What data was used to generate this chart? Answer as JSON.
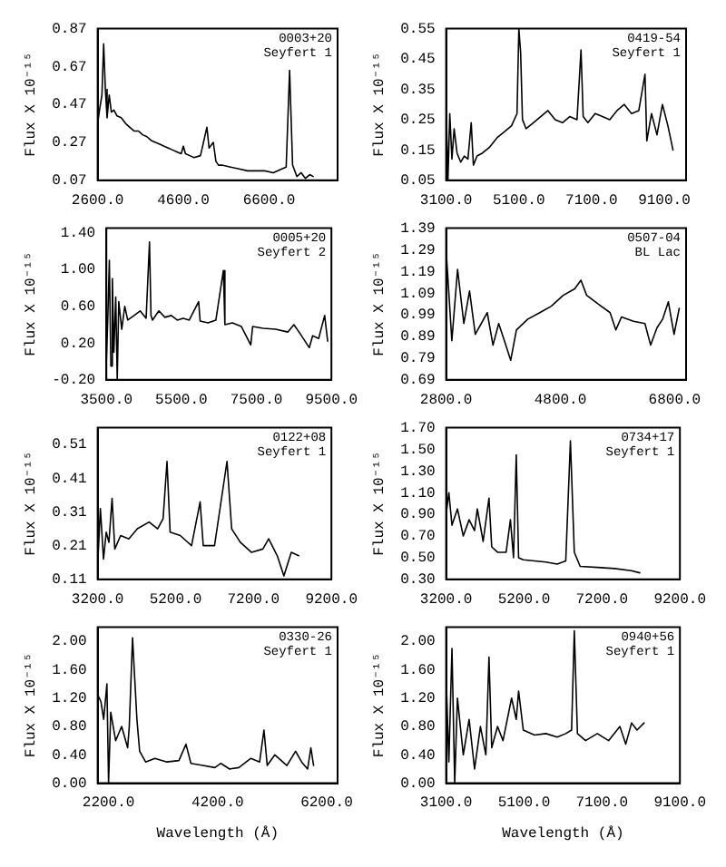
{
  "chart_data": [
    {
      "type": "line",
      "ylabel": "Flux X 10⁻¹⁵",
      "annotations": [
        "0003+20",
        "Seyfert 1"
      ],
      "xlim": [
        2600,
        8200
      ],
      "xticks": [
        {
          "value": 2600,
          "label": "2600.0"
        },
        {
          "value": 4600,
          "label": "4600.0"
        },
        {
          "value": 6600,
          "label": "6600.0"
        }
      ],
      "ylim": [
        0.07,
        0.87
      ],
      "yticks": [
        0.07,
        0.27,
        0.47,
        0.67,
        0.87
      ],
      "series": [
        {
          "color": "#000000",
          "x": [
            2600,
            2650,
            2700,
            2740,
            2780,
            2820,
            2870,
            2920,
            2980,
            3050,
            3150,
            3250,
            3350,
            3450,
            3550,
            3650,
            3750,
            3850,
            3950,
            4050,
            4150,
            4250,
            4350,
            4450,
            4550,
            4600,
            4650,
            4750,
            4850,
            5000,
            5150,
            5200,
            5300,
            5360,
            5420,
            5500,
            5700,
            5900,
            6100,
            6300,
            6500,
            6700,
            6900,
            7000,
            7080,
            7150,
            7250,
            7350,
            7450,
            7550,
            7630
          ],
          "values": [
            0.37,
            0.45,
            0.52,
            0.79,
            0.55,
            0.4,
            0.52,
            0.43,
            0.44,
            0.41,
            0.4,
            0.37,
            0.35,
            0.33,
            0.33,
            0.31,
            0.3,
            0.28,
            0.27,
            0.26,
            0.25,
            0.24,
            0.23,
            0.22,
            0.21,
            0.25,
            0.21,
            0.2,
            0.19,
            0.2,
            0.35,
            0.24,
            0.27,
            0.17,
            0.15,
            0.15,
            0.14,
            0.13,
            0.12,
            0.12,
            0.12,
            0.11,
            0.13,
            0.14,
            0.65,
            0.15,
            0.09,
            0.11,
            0.08,
            0.1,
            0.09
          ]
        }
      ]
    },
    {
      "type": "line",
      "ylabel": "Flux X 10⁻¹⁵",
      "annotations": [
        "0419-54",
        "Seyfert 1"
      ],
      "xlim": [
        3100,
        9700
      ],
      "xticks": [
        {
          "value": 3100,
          "label": "3100.0"
        },
        {
          "value": 5100,
          "label": "5100.0"
        },
        {
          "value": 7100,
          "label": "7100.0"
        },
        {
          "value": 9100,
          "label": "9100.0"
        }
      ],
      "ylim": [
        0.05,
        0.55
      ],
      "yticks": [
        0.05,
        0.15,
        0.25,
        0.35,
        0.45,
        0.55
      ],
      "series": [
        {
          "color": "#000000",
          "x": [
            3100,
            3150,
            3200,
            3260,
            3320,
            3400,
            3500,
            3600,
            3700,
            3790,
            3850,
            3950,
            4100,
            4300,
            4500,
            4700,
            4900,
            5050,
            5100,
            5150,
            5200,
            5300,
            5500,
            5700,
            5900,
            6100,
            6300,
            6500,
            6700,
            6810,
            6870,
            7000,
            7200,
            7400,
            7600,
            7800,
            8000,
            8200,
            8400,
            8570,
            8620,
            8750,
            8900,
            9050,
            9200,
            9340
          ],
          "values": [
            0.3,
            0.05,
            0.27,
            0.12,
            0.22,
            0.14,
            0.11,
            0.13,
            0.12,
            0.24,
            0.1,
            0.13,
            0.14,
            0.16,
            0.19,
            0.21,
            0.23,
            0.27,
            0.55,
            0.47,
            0.25,
            0.22,
            0.24,
            0.26,
            0.28,
            0.25,
            0.24,
            0.26,
            0.25,
            0.48,
            0.26,
            0.24,
            0.27,
            0.26,
            0.25,
            0.28,
            0.3,
            0.27,
            0.28,
            0.4,
            0.18,
            0.27,
            0.2,
            0.3,
            0.23,
            0.15
          ]
        }
      ]
    },
    {
      "type": "line",
      "ylabel": "Flux X 10⁻¹⁵",
      "annotations": [
        "0005+20",
        "Seyfert 2"
      ],
      "xlim": [
        3500,
        9500
      ],
      "xticks": [
        {
          "value": 3500,
          "label": "3500.0"
        },
        {
          "value": 5500,
          "label": "5500.0"
        },
        {
          "value": 7500,
          "label": "7500.0"
        },
        {
          "value": 9500,
          "label": "9500.0"
        }
      ],
      "ylim": [
        -0.2,
        1.45
      ],
      "yticks": [
        {
          "value": -0.2,
          "label": "-0.20"
        },
        {
          "value": 0.2,
          "label": "0.20"
        },
        {
          "value": 0.6,
          "label": "0.60"
        },
        {
          "value": 1,
          "label": "1.00"
        },
        {
          "value": 1.4,
          "label": "1.40"
        }
      ],
      "series": [
        {
          "color": "#000000",
          "x": [
            3500,
            3540,
            3580,
            3620,
            3660,
            3700,
            3750,
            3790,
            3830,
            3910,
            3990,
            4070,
            4240,
            4400,
            4560,
            4650,
            4690,
            4730,
            4900,
            5060,
            5230,
            5390,
            5550,
            5710,
            5960,
            6000,
            6210,
            6420,
            6620,
            6660,
            6860,
            7100,
            7350,
            7400,
            7680,
            8010,
            8340,
            8500,
            8670,
            8910,
            9000,
            9160,
            9320,
            9400
          ],
          "values": [
            0.0,
            0.5,
            1.1,
            -0.05,
            0.9,
            0.1,
            0.7,
            -0.2,
            0.65,
            0.35,
            0.6,
            0.45,
            0.5,
            0.55,
            0.47,
            1.3,
            0.5,
            0.45,
            0.55,
            0.48,
            0.5,
            0.45,
            0.47,
            0.45,
            0.65,
            0.44,
            0.42,
            0.45,
            0.99,
            0.4,
            0.42,
            0.38,
            0.18,
            0.38,
            0.36,
            0.35,
            0.32,
            0.4,
            0.3,
            0.15,
            0.28,
            0.25,
            0.5,
            0.22
          ]
        }
      ]
    },
    {
      "type": "line",
      "ylabel": "Flux X 10⁻¹⁵",
      "annotations": [
        "0507-04",
        "BL Lac"
      ],
      "xlim": [
        2800,
        7000
      ],
      "xticks": [
        {
          "value": 2800,
          "label": "2800.0"
        },
        {
          "value": 4800,
          "label": "4800.0"
        },
        {
          "value": 6800,
          "label": "6800.0"
        }
      ],
      "ylim": [
        0.69,
        1.39
      ],
      "yticks": [
        0.69,
        0.79,
        0.89,
        0.99,
        1.09,
        1.19,
        1.29,
        1.39
      ],
      "series": [
        {
          "color": "#000000",
          "x": [
            2800,
            2900,
            3000,
            3110,
            3210,
            3310,
            3520,
            3620,
            3720,
            3820,
            3930,
            4030,
            4230,
            4440,
            4640,
            4850,
            5050,
            5160,
            5260,
            5460,
            5670,
            5770,
            5870,
            6080,
            6280,
            6380,
            6490,
            6590,
            6690,
            6790,
            6880
          ],
          "values": [
            1.29,
            0.87,
            1.2,
            0.95,
            1.1,
            0.9,
            1.0,
            0.85,
            0.95,
            0.87,
            0.78,
            0.92,
            0.97,
            1.0,
            1.03,
            1.08,
            1.11,
            1.15,
            1.08,
            1.04,
            1.0,
            0.92,
            0.98,
            0.96,
            0.95,
            0.85,
            0.93,
            0.97,
            1.05,
            0.9,
            1.02
          ]
        }
      ]
    },
    {
      "type": "line",
      "ylabel": "Flux X 10⁻¹⁵",
      "annotations": [
        "0122+08",
        "Seyfert 1"
      ],
      "xlim": [
        3200,
        9200
      ],
      "xticks": [
        {
          "value": 3200,
          "label": "3200.0"
        },
        {
          "value": 5200,
          "label": "5200.0"
        },
        {
          "value": 7200,
          "label": "7200.0"
        },
        {
          "value": 9200,
          "label": "9200.0"
        }
      ],
      "ylim": [
        0.11,
        0.56
      ],
      "yticks": [
        0.11,
        0.21,
        0.31,
        0.41,
        0.51
      ],
      "series": [
        {
          "color": "#000000",
          "x": [
            3200,
            3270,
            3350,
            3420,
            3490,
            3570,
            3640,
            3790,
            4000,
            4220,
            4520,
            4740,
            4880,
            4980,
            5060,
            5320,
            5610,
            5830,
            5910,
            6200,
            6520,
            6640,
            6860,
            7150,
            7440,
            7590,
            7810,
            7980,
            8170,
            8360
          ],
          "values": [
            0.15,
            0.32,
            0.17,
            0.25,
            0.22,
            0.35,
            0.2,
            0.24,
            0.23,
            0.26,
            0.28,
            0.26,
            0.29,
            0.46,
            0.25,
            0.24,
            0.21,
            0.34,
            0.21,
            0.21,
            0.46,
            0.26,
            0.22,
            0.19,
            0.2,
            0.23,
            0.18,
            0.12,
            0.19,
            0.18
          ]
        }
      ]
    },
    {
      "type": "line",
      "ylabel": "Flux X 10⁻¹⁵",
      "annotations": [
        "0734+17",
        "Seyfert 1"
      ],
      "xlim": [
        3200,
        9200
      ],
      "xticks": [
        {
          "value": 3200,
          "label": "3200.0"
        },
        {
          "value": 5200,
          "label": "5200.0"
        },
        {
          "value": 7200,
          "label": "7200.0"
        },
        {
          "value": 9200,
          "label": "9200.0"
        }
      ],
      "ylim": [
        0.3,
        1.7
      ],
      "yticks": [
        {
          "value": 0.3,
          "label": "0.30"
        },
        {
          "value": 0.5,
          "label": "0.50"
        },
        {
          "value": 0.7,
          "label": "0.70"
        },
        {
          "value": 0.9,
          "label": "0.90"
        },
        {
          "value": 1.1,
          "label": "1.10"
        },
        {
          "value": 1.3,
          "label": "1.30"
        },
        {
          "value": 1.5,
          "label": "1.50"
        },
        {
          "value": 1.7,
          "label": "1.70"
        }
      ],
      "series": [
        {
          "color": "#000000",
          "x": [
            3200,
            3270,
            3350,
            3490,
            3640,
            3790,
            3930,
            4000,
            4150,
            4300,
            4370,
            4520,
            4740,
            4850,
            4930,
            5000,
            5060,
            5180,
            5470,
            5760,
            6050,
            6270,
            6390,
            6490,
            6640,
            7080,
            7520,
            7950,
            8170
          ],
          "values": [
            0.9,
            1.1,
            0.8,
            0.95,
            0.7,
            0.85,
            0.75,
            0.95,
            0.65,
            1.05,
            0.6,
            0.55,
            0.55,
            0.85,
            0.5,
            1.45,
            0.5,
            0.48,
            0.47,
            0.46,
            0.44,
            0.47,
            1.58,
            0.55,
            0.42,
            0.41,
            0.4,
            0.38,
            0.36
          ]
        }
      ]
    },
    {
      "type": "line",
      "xlabel": "Wavelength (Å)",
      "ylabel": "Flux X 10⁻¹⁵",
      "annotations": [
        "0330-26",
        "Seyfert 1"
      ],
      "xlim": [
        2000,
        6400
      ],
      "xticks": [
        {
          "value": 2200,
          "label": "2200.0"
        },
        {
          "value": 4200,
          "label": "4200.0"
        },
        {
          "value": 6200,
          "label": "6200.0"
        }
      ],
      "ylim": [
        0,
        2.2
      ],
      "yticks": [
        {
          "value": 0,
          "label": "0.00"
        },
        {
          "value": 0.4,
          "label": "0.40"
        },
        {
          "value": 0.8,
          "label": "0.80"
        },
        {
          "value": 1.2,
          "label": "1.20"
        },
        {
          "value": 1.6,
          "label": "1.60"
        },
        {
          "value": 2,
          "label": "2.00"
        }
      ],
      "series": [
        {
          "color": "#000000",
          "x": [
            2000,
            2060,
            2110,
            2170,
            2200,
            2240,
            2330,
            2440,
            2550,
            2580,
            2640,
            2720,
            2770,
            2880,
            3050,
            3270,
            3490,
            3620,
            3710,
            3930,
            4150,
            4260,
            4420,
            4590,
            4810,
            4970,
            5050,
            5110,
            5250,
            5470,
            5630,
            5740,
            5850,
            5910,
            5960
          ],
          "values": [
            1.25,
            1.15,
            0.9,
            1.4,
            0.0,
            1.0,
            0.6,
            0.8,
            0.5,
            0.8,
            2.05,
            0.9,
            0.45,
            0.3,
            0.35,
            0.3,
            0.32,
            0.55,
            0.28,
            0.25,
            0.22,
            0.28,
            0.2,
            0.22,
            0.35,
            0.3,
            0.75,
            0.25,
            0.4,
            0.25,
            0.45,
            0.3,
            0.2,
            0.5,
            0.25
          ]
        }
      ]
    },
    {
      "type": "line",
      "xlabel": "Wavelength (Å)",
      "ylabel": "Flux X 10⁻¹⁵",
      "annotations": [
        "0940+56",
        "Seyfert 1"
      ],
      "xlim": [
        3100,
        9100
      ],
      "xticks": [
        {
          "value": 3100,
          "label": "3100.0"
        },
        {
          "value": 5100,
          "label": "5100.0"
        },
        {
          "value": 7100,
          "label": "7100.0"
        },
        {
          "value": 9100,
          "label": "9100.0"
        }
      ],
      "ylim": [
        0,
        2.2
      ],
      "yticks": [
        {
          "value": 0,
          "label": "0.00"
        },
        {
          "value": 0.4,
          "label": "0.40"
        },
        {
          "value": 0.8,
          "label": "0.80"
        },
        {
          "value": 1.2,
          "label": "1.20"
        },
        {
          "value": 1.6,
          "label": "1.60"
        },
        {
          "value": 2,
          "label": "2.00"
        }
      ],
      "series": [
        {
          "color": "#000000",
          "x": [
            3100,
            3170,
            3250,
            3320,
            3390,
            3540,
            3690,
            3830,
            3980,
            4120,
            4200,
            4270,
            4420,
            4560,
            4780,
            4900,
            4960,
            5080,
            5370,
            5660,
            5950,
            6170,
            6320,
            6390,
            6470,
            6680,
            6980,
            7270,
            7560,
            7710,
            7860,
            8000,
            8180
          ],
          "values": [
            1.5,
            0.3,
            1.9,
            0.0,
            1.2,
            0.4,
            0.9,
            0.2,
            0.8,
            0.4,
            1.78,
            0.5,
            0.8,
            0.6,
            1.2,
            0.9,
            1.3,
            0.75,
            0.68,
            0.7,
            0.65,
            0.7,
            0.75,
            2.15,
            0.7,
            0.6,
            0.7,
            0.6,
            0.8,
            0.55,
            0.85,
            0.75,
            0.85
          ]
        }
      ]
    }
  ]
}
